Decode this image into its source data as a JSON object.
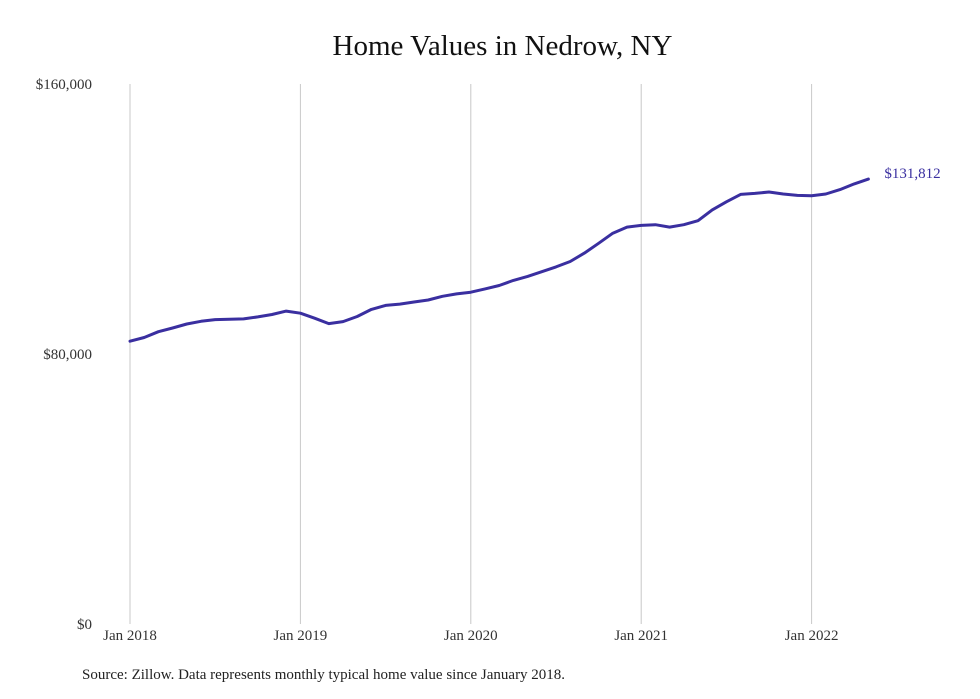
{
  "chart_data": {
    "type": "line",
    "title": "Home Values in Nedrow, NY",
    "xlabel": "",
    "ylabel": "",
    "y_tick_labels": [
      "$0",
      "$80,000",
      "$160,000"
    ],
    "y_tick_values": [
      0,
      80000,
      160000
    ],
    "x_tick_labels": [
      "Jan 2018",
      "Jan 2019",
      "Jan 2020",
      "Jan 2021",
      "Jan 2022"
    ],
    "x_tick_dates": [
      "2018-01",
      "2019-01",
      "2020-01",
      "2021-01",
      "2022-01"
    ],
    "ylim": [
      0,
      160000
    ],
    "xlim": [
      "2018-01",
      "2022-07"
    ],
    "grid": "vertical lines at each January",
    "line_color": "#3a2fa0",
    "end_label": "$131,812",
    "series": [
      {
        "name": "",
        "x": [
          "2018-01",
          "2018-02",
          "2018-03",
          "2018-04",
          "2018-05",
          "2018-06",
          "2018-07",
          "2018-08",
          "2018-09",
          "2018-10",
          "2018-11",
          "2018-12",
          "2019-01",
          "2019-02",
          "2019-03",
          "2019-04",
          "2019-05",
          "2019-06",
          "2019-07",
          "2019-08",
          "2019-09",
          "2019-10",
          "2019-11",
          "2019-12",
          "2020-01",
          "2020-02",
          "2020-03",
          "2020-04",
          "2020-05",
          "2020-06",
          "2020-07",
          "2020-08",
          "2020-09",
          "2020-10",
          "2020-11",
          "2020-12",
          "2021-01",
          "2021-02",
          "2021-03",
          "2021-04",
          "2021-05",
          "2021-06",
          "2021-07",
          "2021-08",
          "2021-09",
          "2021-10",
          "2021-11",
          "2021-12",
          "2022-01",
          "2022-02",
          "2022-03",
          "2022-04",
          "2022-05"
        ],
        "values": [
          83800,
          84900,
          86600,
          87700,
          88900,
          89700,
          90200,
          90300,
          90400,
          91000,
          91700,
          92700,
          92100,
          90600,
          89000,
          89600,
          91100,
          93200,
          94400,
          94800,
          95400,
          96000,
          97100,
          97800,
          98300,
          99300,
          100300,
          101800,
          103000,
          104400,
          105800,
          107400,
          109900,
          112800,
          115800,
          117600,
          118100,
          118300,
          117600,
          118300,
          119500,
          122700,
          125100,
          127300,
          127600,
          128000,
          127400,
          127000,
          126900,
          127400,
          128700,
          130400,
          131812
        ]
      }
    ]
  },
  "source_note": "Source: Zillow. Data represents monthly typical home value since January 2018."
}
